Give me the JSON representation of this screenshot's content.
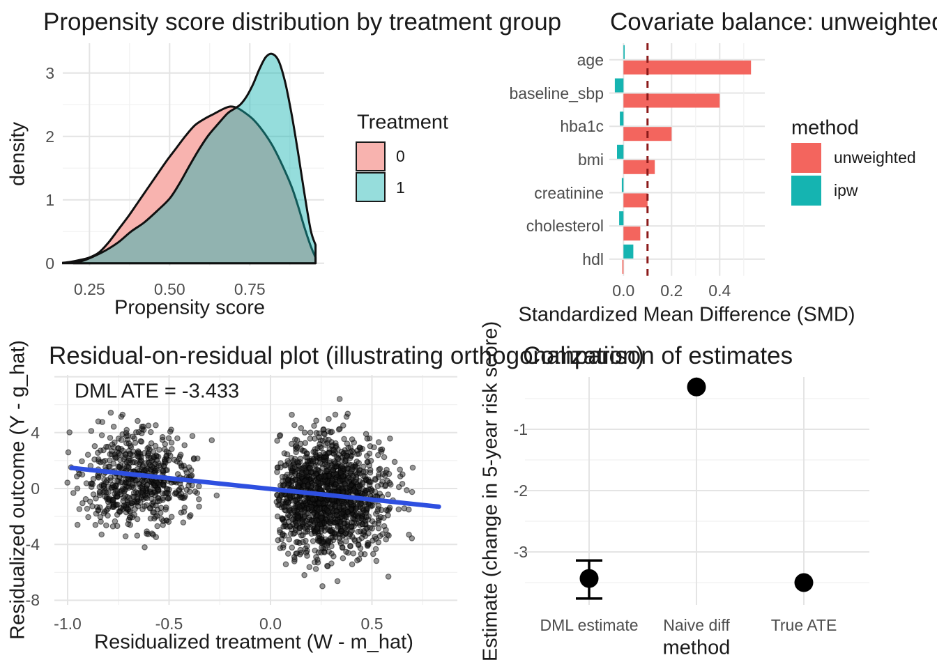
{
  "colors": {
    "background": "#FFFFFF",
    "grid_major": "#E4E4E4",
    "grid_minor": "#F0F0F0",
    "tick_text": "#4D4D4D",
    "text": "#1A1A1A",
    "unweighted_red": "#F3655E",
    "ipw_teal": "#15B4B1",
    "density0_pink": "#F8B3AF",
    "density1_teal": "rgba(21,179,177,0.45)",
    "density1_legend": "#96DDDC",
    "density_stroke": "#101010",
    "reference_dark_red": "#8B1A1A",
    "fit_line_blue": "#2E4FE0",
    "point_fill": "rgba(25,25,25,0.45)",
    "point_stroke": "rgba(0,0,0,0.5)",
    "estimate_black": "#000000"
  },
  "chart_data": [
    {
      "id": "propensity-density",
      "type": "area",
      "title": "Propensity score distribution by treatment group",
      "xlabel": "Propensity score",
      "ylabel": "density",
      "legend_title": "Treatment",
      "legend_position": "right",
      "grid": true,
      "xlim": [
        0.14,
        0.98
      ],
      "ylim": [
        0,
        3.47
      ],
      "xticks": [
        {
          "v": 0.25,
          "t": "0.25"
        },
        {
          "v": 0.5,
          "t": "0.50"
        },
        {
          "v": 0.75,
          "t": "0.75"
        }
      ],
      "yticks": [
        {
          "v": 0,
          "t": "0"
        },
        {
          "v": 1,
          "t": "1"
        },
        {
          "v": 2,
          "t": "2"
        },
        {
          "v": 3,
          "t": "3"
        }
      ],
      "xminor": [
        0.375,
        0.625,
        0.875
      ],
      "yminor": [
        0.5,
        1.5,
        2.5
      ],
      "series": [
        {
          "name": "0",
          "points": [
            [
              0.165,
              0.005
            ],
            [
              0.19,
              0.02
            ],
            [
              0.22,
              0.05
            ],
            [
              0.25,
              0.09
            ],
            [
              0.28,
              0.17
            ],
            [
              0.31,
              0.33
            ],
            [
              0.34,
              0.53
            ],
            [
              0.37,
              0.73
            ],
            [
              0.4,
              0.95
            ],
            [
              0.43,
              1.17
            ],
            [
              0.46,
              1.39
            ],
            [
              0.49,
              1.61
            ],
            [
              0.52,
              1.81
            ],
            [
              0.55,
              2.01
            ],
            [
              0.58,
              2.18
            ],
            [
              0.61,
              2.28
            ],
            [
              0.64,
              2.36
            ],
            [
              0.67,
              2.44
            ],
            [
              0.69,
              2.47
            ],
            [
              0.71,
              2.45
            ],
            [
              0.73,
              2.39
            ],
            [
              0.76,
              2.27
            ],
            [
              0.79,
              2.09
            ],
            [
              0.82,
              1.86
            ],
            [
              0.85,
              1.56
            ],
            [
              0.88,
              1.21
            ],
            [
              0.9,
              0.91
            ],
            [
              0.92,
              0.57
            ],
            [
              0.94,
              0.27
            ],
            [
              0.955,
              0.09
            ]
          ]
        },
        {
          "name": "1",
          "points": [
            [
              0.2,
              0.005
            ],
            [
              0.23,
              0.04
            ],
            [
              0.26,
              0.1
            ],
            [
              0.3,
              0.2
            ],
            [
              0.34,
              0.33
            ],
            [
              0.38,
              0.5
            ],
            [
              0.42,
              0.64
            ],
            [
              0.46,
              0.82
            ],
            [
              0.5,
              1.02
            ],
            [
              0.53,
              1.25
            ],
            [
              0.56,
              1.52
            ],
            [
              0.59,
              1.78
            ],
            [
              0.62,
              2.01
            ],
            [
              0.65,
              2.19
            ],
            [
              0.68,
              2.36
            ],
            [
              0.7,
              2.43
            ],
            [
              0.72,
              2.5
            ],
            [
              0.74,
              2.63
            ],
            [
              0.76,
              2.82
            ],
            [
              0.78,
              3.06
            ],
            [
              0.8,
              3.25
            ],
            [
              0.82,
              3.3
            ],
            [
              0.84,
              3.19
            ],
            [
              0.86,
              2.86
            ],
            [
              0.88,
              2.36
            ],
            [
              0.9,
              1.76
            ],
            [
              0.92,
              1.11
            ],
            [
              0.94,
              0.52
            ],
            [
              0.955,
              0.29
            ]
          ]
        }
      ]
    },
    {
      "id": "covariate-balance",
      "type": "bar",
      "orientation": "horizontal",
      "title": "Covariate balance: unweighted",
      "xlabel": "Standardized Mean Difference (SMD)",
      "legend_title": "method",
      "grid": true,
      "categories": [
        "age",
        "baseline_sbp",
        "hba1c",
        "bmi",
        "creatinine",
        "cholesterol",
        "hdl"
      ],
      "series": [
        {
          "name": "unweighted",
          "values": [
            0.53,
            0.4,
            0.2,
            0.13,
            0.1,
            0.07,
            -0.005
          ]
        },
        {
          "name": "ipw",
          "values": [
            0.005,
            -0.036,
            -0.015,
            -0.027,
            -0.007,
            -0.018,
            0.041
          ]
        }
      ],
      "reference_line_x": 0.1,
      "xticks": [
        {
          "v": 0,
          "t": "0.0"
        },
        {
          "v": 0.2,
          "t": "0.2"
        },
        {
          "v": 0.4,
          "t": "0.4"
        }
      ],
      "xminor": [
        0.3,
        0.5
      ],
      "xlim": [
        -0.06,
        0.585
      ]
    },
    {
      "id": "residual-on-residual",
      "type": "scatter",
      "title": "Residual-on-residual plot (illustrating orthogonalization)",
      "xlabel": "Residualized treatment (W - m_hat)",
      "ylabel": "Residualized outcome (Y - g_hat)",
      "annotation": "DML ATE = -3.433",
      "grid": true,
      "xlim": [
        -1.07,
        0.92
      ],
      "ylim": [
        -8.4,
        8.1
      ],
      "xticks": [
        {
          "v": -1,
          "t": "-1.0"
        },
        {
          "v": -0.5,
          "t": "-0.5"
        },
        {
          "v": 0,
          "t": "0.0"
        },
        {
          "v": 0.5,
          "t": "0.5"
        }
      ],
      "yticks": [
        {
          "v": 4,
          "t": "4"
        },
        {
          "v": 0,
          "t": "0"
        },
        {
          "v": -4,
          "t": "-4"
        },
        {
          "v": -8,
          "t": "-8"
        }
      ],
      "xminor": [
        -0.75,
        -0.25,
        0.25,
        0.75
      ],
      "yminor": [
        6,
        2,
        -2,
        -6
      ],
      "ymajor_unlabeled": [
        8
      ],
      "clusters": [
        {
          "n": 620,
          "x_mean": -0.655,
          "x_sd": 0.135,
          "x_range": [
            -1.01,
            -0.22
          ],
          "y_mean": 0.55,
          "y_sd": 1.75,
          "y_range": [
            -4.8,
            6.2
          ]
        },
        {
          "n": 1430,
          "x_mean": 0.27,
          "x_sd": 0.145,
          "x_range": [
            0.03,
            0.87
          ],
          "y_mean": -0.55,
          "y_sd": 2.05,
          "y_range": [
            -8.2,
            6.7
          ]
        }
      ],
      "fit_line": {
        "x1": -0.98,
        "y1": 1.47,
        "x2": 0.83,
        "y2": -1.3
      },
      "seed": 42
    },
    {
      "id": "estimate-comparison",
      "type": "pointrange",
      "title": "Comparison of estimates",
      "xlabel": "method",
      "ylabel": "Estimate (change in 5-year risk score)",
      "grid": true,
      "categories": [
        "DML estimate",
        "Naive diff",
        "True ATE"
      ],
      "values": [
        -3.433,
        -0.31,
        -3.5
      ],
      "ci_low": [
        -3.76,
        null,
        null
      ],
      "ci_high": [
        -3.14,
        null,
        null
      ],
      "yticks": [
        {
          "v": -1,
          "t": "-1"
        },
        {
          "v": -2,
          "t": "-2"
        },
        {
          "v": -3,
          "t": "-3"
        }
      ],
      "yminor": [
        -0.5,
        -1.5,
        -2.5,
        -3.5
      ],
      "ylim": [
        -3.86,
        -0.14
      ]
    }
  ]
}
